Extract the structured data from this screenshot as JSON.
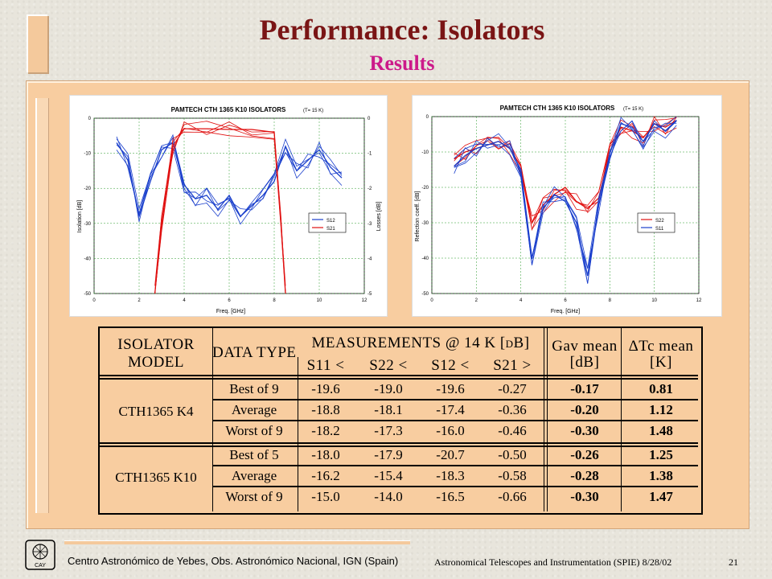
{
  "slide": {
    "title": "Performance: Isolators",
    "subtitle": "Results"
  },
  "plot_left": {
    "title": "PAMTECH CTH 1365 K10 ISOLATORS",
    "title_note": "(T= 15 K)",
    "xlabel": "Freq. [GHz]",
    "ylabel_left": "Isolation [dB]",
    "ylabel_right": "Losses [dB]",
    "legend": [
      "S12",
      "S21"
    ]
  },
  "plot_right": {
    "title": "PAMTECH CTH 1365 K10 ISOLATORS",
    "title_note": "(T= 15 K)",
    "xlabel": "Freq. [GHz]",
    "ylabel_left": "Refection coeff. [dB]",
    "legend": [
      "S22",
      "S11"
    ]
  },
  "chart_data": [
    {
      "type": "line",
      "title": "PAMTECH CTH 1365 K10 ISOLATORS (T= 15 K)",
      "xlabel": "Freq. [GHz]",
      "ylabel": "Isolation [dB]",
      "y2label": "Losses [dB]",
      "xlim": [
        0,
        12
      ],
      "ylim": [
        -50,
        0
      ],
      "y2lim": [
        -5,
        0
      ],
      "xticks": [
        "0",
        "2",
        "4",
        "6",
        "8",
        "10",
        "12"
      ],
      "yticks": [
        "0",
        "-10",
        "-20",
        "-30",
        "-40",
        "-50"
      ],
      "y2ticks": [
        "0",
        "-1",
        "-2",
        "-3",
        "-4",
        "-5"
      ],
      "grid": true,
      "legend_position": "right",
      "series": [
        {
          "name": "S12",
          "color": "#1a3fcc",
          "x": [
            1,
            1.5,
            2,
            2.5,
            3,
            3.5,
            4,
            4.5,
            5,
            5.5,
            6,
            6.5,
            7,
            7.5,
            8,
            8.5,
            9,
            9.5,
            10,
            10.5,
            11
          ],
          "y": [
            -7,
            -12,
            -28,
            -18,
            -9,
            -7,
            -19,
            -23,
            -22,
            -26,
            -22,
            -28,
            -25,
            -22,
            -18,
            -8,
            -15,
            -12,
            -9,
            -14,
            -17
          ]
        },
        {
          "name": "S21",
          "color": "#e01010",
          "x": [
            2.7,
            3.0,
            3.5,
            4,
            5,
            6,
            7,
            8,
            8.3,
            8.5
          ],
          "y": [
            -50,
            -30,
            -8,
            -3,
            -3,
            -3.2,
            -3.2,
            -4,
            -30,
            -50
          ]
        }
      ]
    },
    {
      "type": "line",
      "title": "PAMTECH CTH 1365 K10 ISOLATORS (T= 15 K)",
      "xlabel": "Freq. [GHz]",
      "ylabel": "Refection coeff. [dB]",
      "xlim": [
        0,
        12
      ],
      "ylim": [
        -50,
        0
      ],
      "xticks": [
        "0",
        "2",
        "4",
        "6",
        "8",
        "10",
        "12"
      ],
      "yticks": [
        "0",
        "-10",
        "-20",
        "-30",
        "-40",
        "-50"
      ],
      "grid": true,
      "legend_position": "right",
      "series": [
        {
          "name": "S22",
          "color": "#e01010",
          "x": [
            1,
            1.5,
            2,
            2.5,
            3,
            3.5,
            4,
            4.5,
            5,
            5.5,
            6,
            6.5,
            7,
            7.5,
            8,
            8.5,
            9,
            9.5,
            10,
            10.5,
            11
          ],
          "y": [
            -12,
            -10,
            -9,
            -8,
            -7,
            -9,
            -14,
            -30,
            -25,
            -22,
            -20,
            -24,
            -26,
            -23,
            -10,
            -3,
            -4,
            -6,
            -2,
            -3,
            -1
          ]
        },
        {
          "name": "S11",
          "color": "#1a3fcc",
          "x": [
            1,
            1.5,
            2,
            2.5,
            3,
            3.5,
            4,
            4.5,
            5,
            5.5,
            6,
            6.5,
            7,
            7.5,
            8,
            8.5,
            9,
            9.5,
            10,
            10.5,
            11
          ],
          "y": [
            -14,
            -11,
            -9,
            -8,
            -7,
            -9,
            -15,
            -40,
            -26,
            -22,
            -24,
            -30,
            -45,
            -25,
            -12,
            -2,
            -3,
            -7,
            -2,
            -4,
            -1
          ]
        }
      ]
    }
  ],
  "table": {
    "col_model": [
      "ISOLATOR",
      "MODEL"
    ],
    "col_type": "DATA TYPE",
    "col_meas": "MEASUREMENTS @ 14 K [dB]",
    "s11": "S11 <",
    "s22": "S22 <",
    "s12": "S12 <",
    "s21": "S21 >",
    "gav": "Gav mean",
    "gav_unit": "[dB]",
    "dt": "ΔTc mean",
    "dt_unit": "[K]",
    "groups": [
      {
        "model": "CTH1365 K4",
        "rows": [
          {
            "type": "Best of 9",
            "s11": "-19.6",
            "s22": "-19.0",
            "s12": "-19.6",
            "s21": "-0.27",
            "g": "-0.17",
            "t": "0.81"
          },
          {
            "type": "Average",
            "s11": "-18.8",
            "s22": "-18.1",
            "s12": "-17.4",
            "s21": "-0.36",
            "g": "-0.20",
            "t": "1.12"
          },
          {
            "type": "Worst of 9",
            "s11": "-18.2",
            "s22": "-17.3",
            "s12": "-16.0",
            "s21": "-0.46",
            "g": "-0.30",
            "t": "1.48"
          }
        ]
      },
      {
        "model": "CTH1365 K10",
        "rows": [
          {
            "type": "Best of 5",
            "s11": "-18.0",
            "s22": "-17.9",
            "s12": "-20.7",
            "s21": "-0.50",
            "g": "-0.26",
            "t": "1.25"
          },
          {
            "type": "Average",
            "s11": "-16.2",
            "s22": "-15.4",
            "s12": "-18.3",
            "s21": "-0.58",
            "g": "-0.28",
            "t": "1.38"
          },
          {
            "type": "Worst of 9",
            "s11": "-15.0",
            "s22": "-14.0",
            "s12": "-16.5",
            "s21": "-0.66",
            "g": "-0.30",
            "t": "1.47"
          }
        ]
      }
    ]
  },
  "footer": {
    "institution": "Centro Astronómico de Yebes, Obs. Astronómico Nacional, IGN (Spain)",
    "conference": "Astronomical Telescopes and Instrumentation (SPIE)",
    "date": "8/28/02",
    "page": "21",
    "logo_text": "CAY"
  },
  "colors": {
    "panel": "#f8cda0",
    "title": "#7a1515",
    "subtitle": "#cc1a8a",
    "s_red": "#e01010",
    "s_blue": "#1a3fcc"
  }
}
